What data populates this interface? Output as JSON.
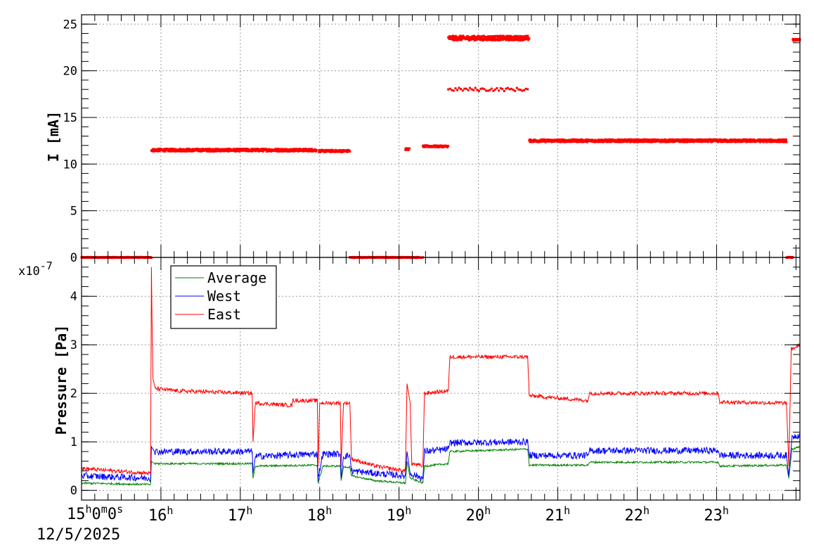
{
  "chart_data": [
    {
      "type": "scatter",
      "ylabel": "I [mA]",
      "ylim": [
        0,
        26
      ],
      "yticks": [
        0,
        5,
        10,
        15,
        20,
        25
      ],
      "xlim": [
        15.0,
        24.05
      ],
      "grid": true,
      "series": [
        {
          "color": "#ff0000",
          "segments": [
            {
              "x0": 15.0,
              "x1": 15.88,
              "y": 0.0,
              "noise": 0.05
            },
            {
              "x0": 15.88,
              "x1": 17.96,
              "y": 11.5,
              "noise": 0.15
            },
            {
              "x0": 17.99,
              "x1": 18.38,
              "y": 11.4,
              "noise": 0.12
            },
            {
              "x0": 18.38,
              "x1": 19.3,
              "y": 0.0,
              "noise": 0.05
            },
            {
              "x0": 19.08,
              "x1": 19.13,
              "y": 11.6,
              "noise": 0.1
            },
            {
              "x0": 19.3,
              "x1": 19.62,
              "y": 11.9,
              "noise": 0.1
            },
            {
              "x0": 19.62,
              "x1": 20.64,
              "y": 23.5,
              "noise": 0.25
            },
            {
              "x0": 19.62,
              "x1": 20.62,
              "y": 18.0,
              "noise": 0.18,
              "sparse": true
            },
            {
              "x0": 20.64,
              "x1": 23.88,
              "y": 12.5,
              "noise": 0.15
            },
            {
              "x0": 23.88,
              "x1": 23.96,
              "y": 0.0,
              "noise": 0.05
            },
            {
              "x0": 23.96,
              "x1": 24.05,
              "y": 23.3,
              "noise": 0.1
            }
          ]
        }
      ]
    },
    {
      "type": "line",
      "ylabel": "Pressure [Pa]",
      "y_multiplier": "x10",
      "y_multiplier_exp": "-7",
      "ylim": [
        -0.2,
        4.8
      ],
      "yticks": [
        0,
        1,
        2,
        3,
        4
      ],
      "xlim": [
        15.0,
        24.05
      ],
      "grid": true,
      "legend_position": "top-left",
      "series": [
        {
          "name": "Average",
          "color": "#008000",
          "noise": 0.02,
          "points": [
            [
              15.0,
              0.15
            ],
            [
              15.87,
              0.12
            ],
            [
              15.88,
              0.6
            ],
            [
              15.92,
              0.55
            ],
            [
              17.15,
              0.55
            ],
            [
              17.16,
              0.25
            ],
            [
              17.19,
              0.5
            ],
            [
              17.97,
              0.52
            ],
            [
              17.98,
              0.15
            ],
            [
              18.04,
              0.5
            ],
            [
              18.26,
              0.5
            ],
            [
              18.27,
              0.2
            ],
            [
              18.3,
              0.48
            ],
            [
              18.38,
              0.48
            ],
            [
              18.4,
              0.3
            ],
            [
              18.7,
              0.2
            ],
            [
              19.08,
              0.15
            ],
            [
              19.1,
              0.6
            ],
            [
              19.14,
              0.25
            ],
            [
              19.3,
              0.15
            ],
            [
              19.32,
              0.5
            ],
            [
              19.62,
              0.55
            ],
            [
              19.64,
              0.8
            ],
            [
              20.62,
              0.85
            ],
            [
              20.64,
              0.52
            ],
            [
              21.38,
              0.52
            ],
            [
              21.4,
              0.58
            ],
            [
              23.02,
              0.58
            ],
            [
              23.04,
              0.5
            ],
            [
              23.88,
              0.52
            ],
            [
              23.91,
              0.25
            ],
            [
              23.95,
              0.85
            ],
            [
              24.05,
              0.9
            ]
          ]
        },
        {
          "name": "West",
          "color": "#0000ff",
          "noise": 0.07,
          "points": [
            [
              15.0,
              0.3
            ],
            [
              15.87,
              0.25
            ],
            [
              15.88,
              0.9
            ],
            [
              15.92,
              0.8
            ],
            [
              17.15,
              0.8
            ],
            [
              17.16,
              0.35
            ],
            [
              17.19,
              0.7
            ],
            [
              17.97,
              0.75
            ],
            [
              17.98,
              0.25
            ],
            [
              18.04,
              0.75
            ],
            [
              18.26,
              0.75
            ],
            [
              18.27,
              0.25
            ],
            [
              18.3,
              0.7
            ],
            [
              18.38,
              0.72
            ],
            [
              18.4,
              0.4
            ],
            [
              18.7,
              0.35
            ],
            [
              19.08,
              0.3
            ],
            [
              19.1,
              0.8
            ],
            [
              19.14,
              0.35
            ],
            [
              19.3,
              0.25
            ],
            [
              19.32,
              0.8
            ],
            [
              19.62,
              0.85
            ],
            [
              19.64,
              0.98
            ],
            [
              20.62,
              1.0
            ],
            [
              20.64,
              0.72
            ],
            [
              21.38,
              0.72
            ],
            [
              21.4,
              0.82
            ],
            [
              23.02,
              0.82
            ],
            [
              23.04,
              0.72
            ],
            [
              23.88,
              0.72
            ],
            [
              23.91,
              0.3
            ],
            [
              23.95,
              1.1
            ],
            [
              24.05,
              1.15
            ]
          ]
        },
        {
          "name": "East",
          "color": "#ff0000",
          "noise": 0.04,
          "points": [
            [
              15.0,
              0.45
            ],
            [
              15.87,
              0.35
            ],
            [
              15.88,
              4.6
            ],
            [
              15.89,
              3.3
            ],
            [
              15.9,
              2.3
            ],
            [
              15.93,
              2.1
            ],
            [
              16.2,
              2.05
            ],
            [
              17.15,
              2.0
            ],
            [
              17.16,
              1.0
            ],
            [
              17.19,
              1.8
            ],
            [
              17.65,
              1.75
            ],
            [
              17.66,
              1.85
            ],
            [
              17.97,
              1.85
            ],
            [
              17.98,
              0.5
            ],
            [
              18.0,
              1.8
            ],
            [
              18.26,
              1.8
            ],
            [
              18.27,
              0.5
            ],
            [
              18.3,
              1.8
            ],
            [
              18.38,
              1.8
            ],
            [
              18.4,
              0.65
            ],
            [
              18.7,
              0.5
            ],
            [
              19.08,
              0.4
            ],
            [
              19.1,
              2.2
            ],
            [
              19.14,
              1.8
            ],
            [
              19.16,
              0.55
            ],
            [
              19.3,
              0.5
            ],
            [
              19.32,
              2.0
            ],
            [
              19.62,
              2.05
            ],
            [
              19.64,
              2.75
            ],
            [
              20.62,
              2.75
            ],
            [
              20.64,
              1.95
            ],
            [
              21.38,
              1.85
            ],
            [
              21.4,
              2.0
            ],
            [
              23.02,
              2.0
            ],
            [
              23.04,
              1.82
            ],
            [
              23.88,
              1.8
            ],
            [
              23.91,
              0.5
            ],
            [
              23.94,
              2.9
            ],
            [
              24.05,
              3.0
            ]
          ]
        }
      ]
    }
  ],
  "time_axis": {
    "start_label": "15",
    "start_h": "h",
    "start_m_val": "0",
    "start_m": "m",
    "start_s_val": "0",
    "start_s": "s",
    "date": "12/5/2025",
    "hour_ticks": [
      {
        "hour": 16,
        "label": "16",
        "unit": "h"
      },
      {
        "hour": 17,
        "label": "17",
        "unit": "h"
      },
      {
        "hour": 18,
        "label": "18",
        "unit": "h"
      },
      {
        "hour": 19,
        "label": "19",
        "unit": "h"
      },
      {
        "hour": 20,
        "label": "20",
        "unit": "h"
      },
      {
        "hour": 21,
        "label": "21",
        "unit": "h"
      },
      {
        "hour": 22,
        "label": "22",
        "unit": "h"
      },
      {
        "hour": 23,
        "label": "23",
        "unit": "h"
      }
    ]
  }
}
